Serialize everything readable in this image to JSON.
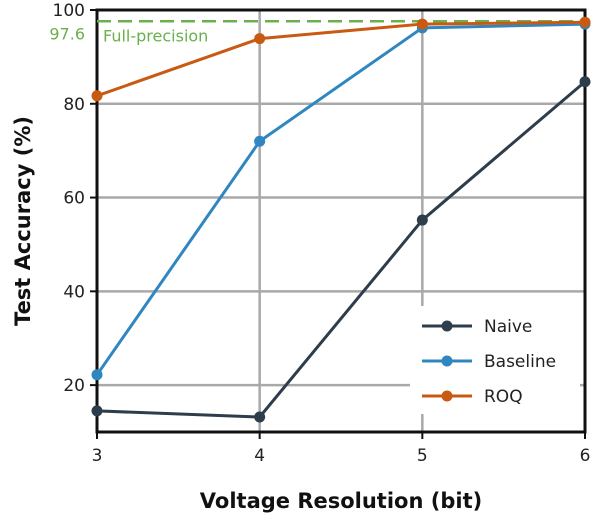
{
  "chart_data": {
    "type": "line",
    "xlabel": "Voltage Resolution (bit)",
    "ylabel": "Test Accuracy (%)",
    "x": [
      3,
      4,
      5,
      6
    ],
    "xlim": [
      3,
      6
    ],
    "ylim": [
      10,
      100
    ],
    "xticks": [
      "3",
      "4",
      "5",
      "6"
    ],
    "yticks": [
      "20",
      "40",
      "60",
      "80",
      "100"
    ],
    "grid": true,
    "legend_position": "bottom-right",
    "series": [
      {
        "name": "Naive",
        "color": "#2e3d4c",
        "values": [
          14.5,
          13.2,
          55.2,
          84.7
        ]
      },
      {
        "name": "Baseline",
        "color": "#2f86c1",
        "values": [
          22.2,
          72.0,
          96.2,
          97.0
        ]
      },
      {
        "name": "ROQ",
        "color": "#c85a12",
        "values": [
          81.7,
          93.9,
          97.0,
          97.4
        ]
      }
    ],
    "reference_line": {
      "value": 97.6,
      "value_label": "97.6",
      "label": "Full-precision",
      "color": "#6ab04c"
    }
  }
}
